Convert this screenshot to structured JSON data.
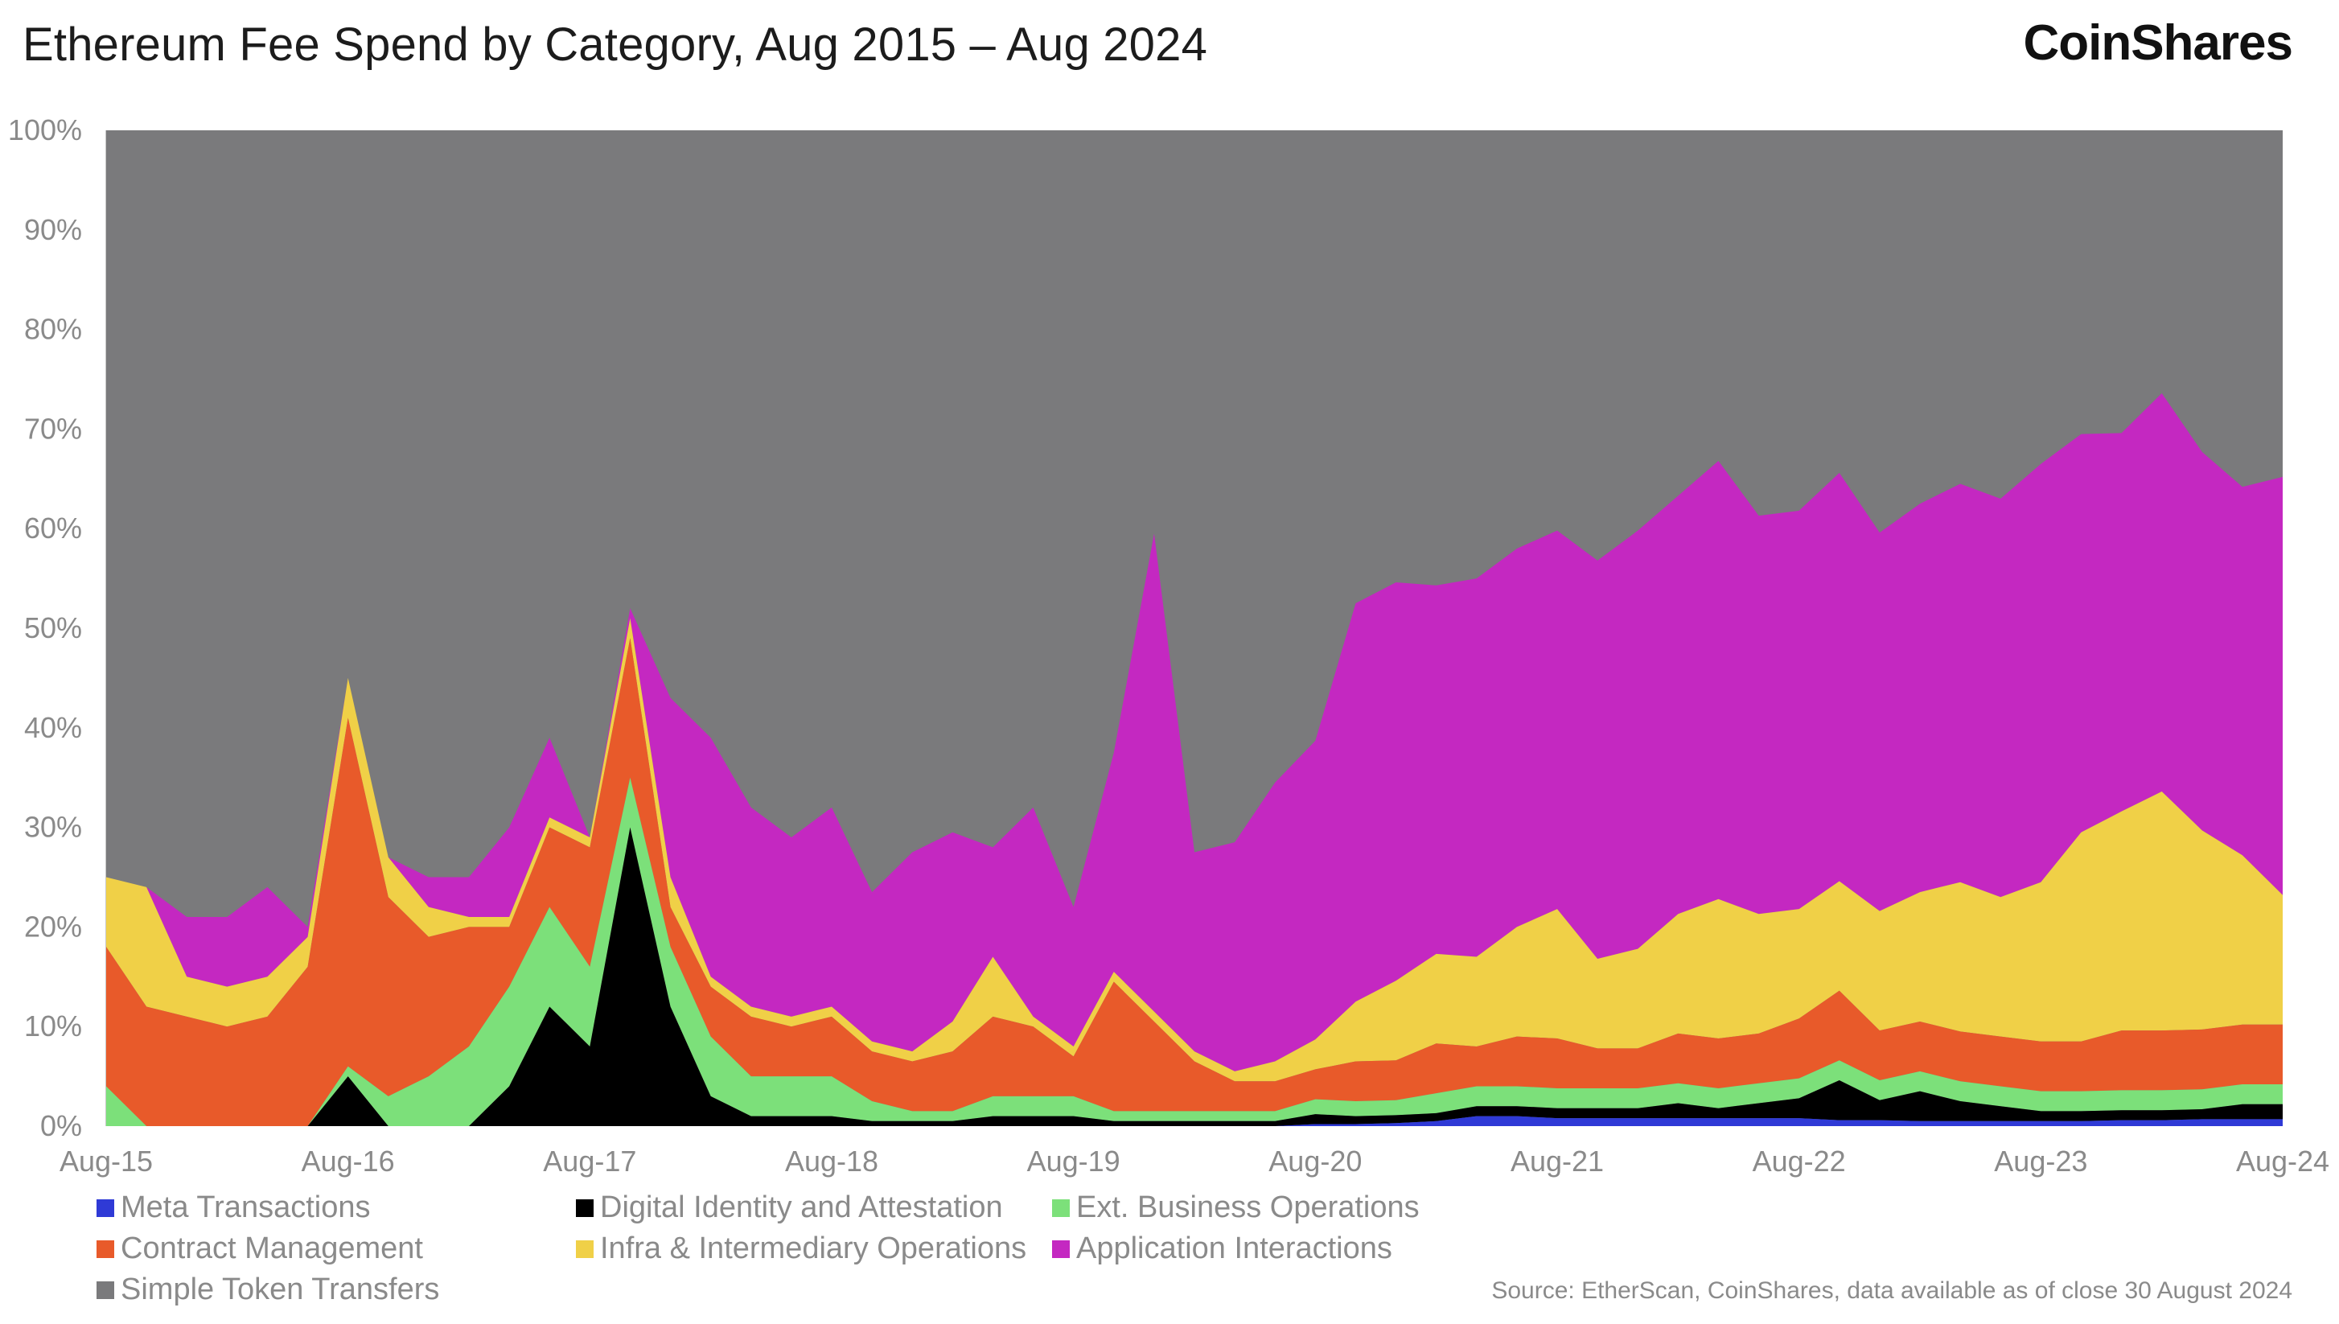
{
  "header": {
    "title": "Ethereum Fee Spend by Category, Aug 2015 – Aug 2024",
    "brand": "CoinShares"
  },
  "source": "Source: EtherScan, CoinShares, data available as of close 30 August 2024",
  "chart_data": {
    "type": "area",
    "stacked": true,
    "normalized_percent": true,
    "title": "Ethereum Fee Spend by Category, Aug 2015 – Aug 2024",
    "ylim": [
      0,
      100
    ],
    "y_ticks": [
      "0%",
      "10%",
      "20%",
      "30%",
      "40%",
      "50%",
      "60%",
      "70%",
      "80%",
      "90%",
      "100%"
    ],
    "x_ticks": [
      "Aug-15",
      "Aug-16",
      "Aug-17",
      "Aug-18",
      "Aug-19",
      "Aug-20",
      "Aug-21",
      "Aug-22",
      "Aug-23",
      "Aug-24"
    ],
    "grid": false,
    "legend_position": "bottom",
    "x": [
      "2015-08",
      "2015-10",
      "2015-12",
      "2016-02",
      "2016-04",
      "2016-06",
      "2016-08",
      "2016-10",
      "2016-12",
      "2017-02",
      "2017-04",
      "2017-06",
      "2017-08",
      "2017-10",
      "2017-12",
      "2018-02",
      "2018-04",
      "2018-06",
      "2018-08",
      "2018-10",
      "2018-12",
      "2019-02",
      "2019-04",
      "2019-06",
      "2019-08",
      "2019-10",
      "2019-12",
      "2020-02",
      "2020-04",
      "2020-06",
      "2020-08",
      "2020-10",
      "2020-12",
      "2021-02",
      "2021-04",
      "2021-06",
      "2021-08",
      "2021-10",
      "2021-12",
      "2022-02",
      "2022-04",
      "2022-06",
      "2022-08",
      "2022-10",
      "2022-12",
      "2023-02",
      "2023-04",
      "2023-06",
      "2023-08",
      "2023-10",
      "2023-12",
      "2024-02",
      "2024-04",
      "2024-06",
      "2024-08"
    ],
    "series": [
      {
        "name": "Meta Transactions",
        "color": "#2f3ad6",
        "values": [
          0,
          0,
          0,
          0,
          0,
          0,
          0,
          0,
          0,
          0,
          0,
          0,
          0,
          0,
          0,
          0,
          0,
          0,
          0,
          0,
          0,
          0,
          0,
          0,
          0,
          0,
          0,
          0,
          0,
          0,
          0.2,
          0.2,
          0.3,
          0.5,
          1,
          1,
          0.8,
          0.8,
          0.8,
          0.8,
          0.8,
          0.8,
          0.8,
          0.6,
          0.6,
          0.5,
          0.5,
          0.5,
          0.5,
          0.5,
          0.6,
          0.6,
          0.7,
          0.7,
          0.7
        ]
      },
      {
        "name": "Digital Identity and Attestation",
        "color": "#000000",
        "values": [
          0,
          0,
          0,
          0,
          0,
          0,
          5,
          0,
          0,
          0,
          4,
          12,
          8,
          30,
          12,
          3,
          1,
          1,
          1,
          0.5,
          0.5,
          0.5,
          1,
          1,
          1,
          0.5,
          0.5,
          0.5,
          0.5,
          0.5,
          1,
          0.8,
          0.8,
          0.8,
          1,
          1,
          1,
          1,
          1,
          1.5,
          1,
          1.5,
          2,
          4,
          2,
          3,
          2,
          1.5,
          1,
          1,
          1,
          1,
          1,
          1.5,
          1.5
        ]
      },
      {
        "name": "Ext. Business Operations",
        "color": "#7ce07a",
        "values": [
          4,
          0,
          0,
          0,
          0,
          0,
          1,
          3,
          5,
          8,
          10,
          10,
          8,
          5,
          6,
          6,
          4,
          4,
          4,
          2,
          1,
          1,
          2,
          2,
          2,
          1,
          1,
          1,
          1,
          1,
          1.5,
          1.5,
          1.5,
          2,
          2,
          2,
          2,
          2,
          2,
          2,
          2,
          2,
          2,
          2,
          2,
          2,
          2,
          2,
          2,
          2,
          2,
          2,
          2,
          2,
          2
        ]
      },
      {
        "name": "Contract Management",
        "color": "#e85a2a",
        "values": [
          14,
          12,
          11,
          10,
          11,
          16,
          35,
          20,
          14,
          12,
          6,
          8,
          12,
          14,
          4,
          5,
          6,
          5,
          6,
          5,
          5,
          6,
          8,
          7,
          4,
          13,
          9,
          5,
          3,
          3,
          3,
          4,
          4,
          5,
          4,
          5,
          5,
          4,
          4,
          5,
          5,
          5,
          6,
          7,
          5,
          5,
          5,
          5,
          5,
          5,
          6,
          6,
          6,
          6,
          6
        ]
      },
      {
        "name": "Infra & Intermediary Operations",
        "color": "#f0d047",
        "values": [
          7,
          12,
          4,
          4,
          4,
          3,
          4,
          4,
          3,
          1,
          1,
          1,
          1,
          2,
          3,
          1,
          1,
          1,
          1,
          1,
          1,
          3,
          6,
          1,
          1,
          1,
          1,
          1,
          1,
          2,
          3,
          6,
          8,
          9,
          9,
          11,
          13,
          9,
          10,
          12,
          14,
          12,
          11,
          11,
          12,
          13,
          15,
          14,
          16,
          21,
          22,
          24,
          20,
          17,
          13
        ]
      },
      {
        "name": "Application Interactions",
        "color": "#c428c1",
        "values": [
          0,
          0,
          6,
          7,
          9,
          1,
          0,
          0,
          3,
          4,
          9,
          8,
          0,
          1,
          18,
          24,
          20,
          18,
          20,
          15,
          20,
          19,
          11,
          21,
          14,
          22,
          48,
          20,
          23,
          28,
          30,
          40,
          40,
          37,
          38,
          38,
          38,
          40,
          42,
          42,
          44,
          40,
          40,
          41,
          38,
          39,
          40,
          40,
          42,
          40,
          38,
          40,
          38,
          37,
          42
        ]
      },
      {
        "name": "Simple Token Transfers",
        "color": "#7a7a7c",
        "values": "remainder to 100%"
      }
    ]
  }
}
